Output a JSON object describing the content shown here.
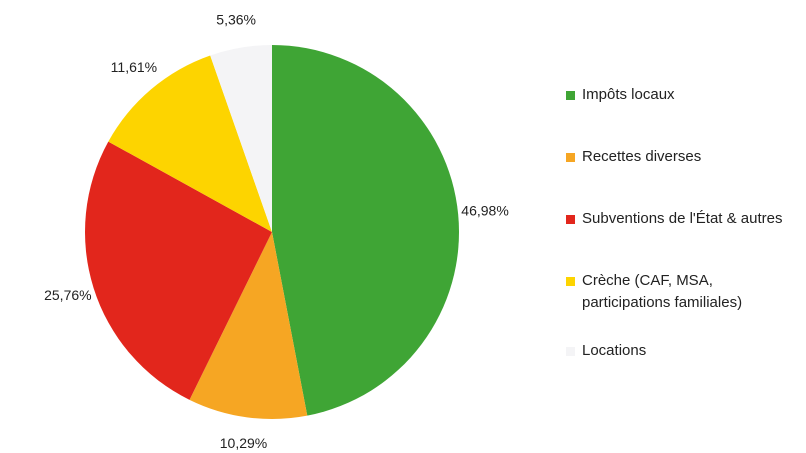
{
  "chart_data": {
    "type": "pie",
    "categories": [
      "Impôts locaux",
      "Recettes diverses",
      "Subventions de l'État & autres",
      "Crèche (CAF, MSA, participations familiales)",
      "Locations"
    ],
    "values": [
      46.98,
      10.29,
      25.76,
      11.61,
      5.36
    ],
    "value_labels": [
      "46,98%",
      "10,29%",
      "25,76%",
      "11,61%",
      "5,36%"
    ],
    "colors": [
      "#3fa535",
      "#f6a623",
      "#e2261c",
      "#fdd400",
      "#f4f4f6"
    ],
    "legend": "right"
  }
}
